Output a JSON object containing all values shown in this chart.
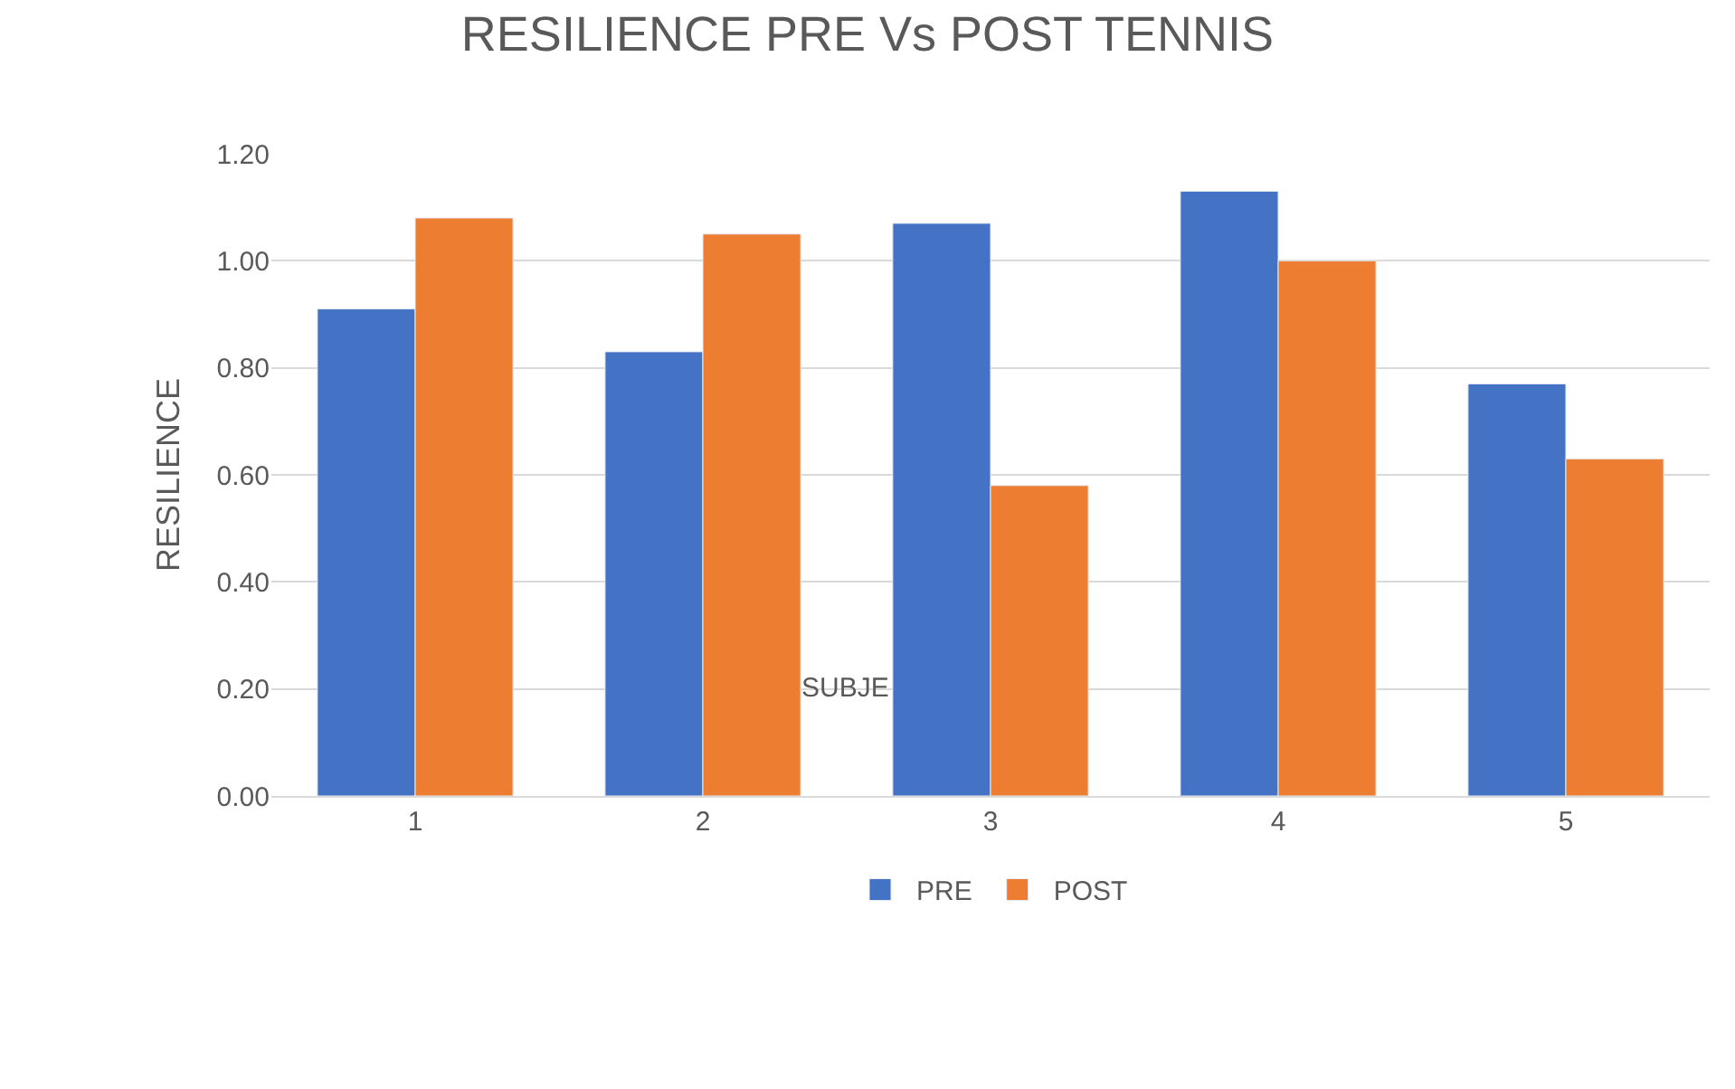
{
  "chart_data": {
    "type": "bar",
    "title": "RESILIENCE PRE Vs POST TENNIS",
    "ylabel": "RESILIENCE",
    "categories": [
      "1",
      "2",
      "3",
      "4",
      "5"
    ],
    "series": [
      {
        "name": "PRE",
        "color": "#4472c4",
        "values": [
          0.91,
          0.83,
          1.07,
          1.13,
          0.77
        ]
      },
      {
        "name": "POST",
        "color": "#ed7d31",
        "values": [
          1.08,
          1.05,
          0.58,
          1.0,
          0.63
        ]
      }
    ],
    "ylim": [
      0,
      1.2
    ],
    "yticks": [
      {
        "value": 0,
        "label": "0.00"
      },
      {
        "value": 0.2,
        "label": "0.20"
      },
      {
        "value": 0.4,
        "label": "0.40"
      },
      {
        "value": 0.6,
        "label": "0.60"
      },
      {
        "value": 0.8,
        "label": "0.80"
      },
      {
        "value": 1.0,
        "label": "1.00"
      },
      {
        "value": 1.2,
        "label": "1.20"
      }
    ],
    "annotations": [
      "SUBJE"
    ],
    "grid": "y",
    "legend": "bottom"
  }
}
